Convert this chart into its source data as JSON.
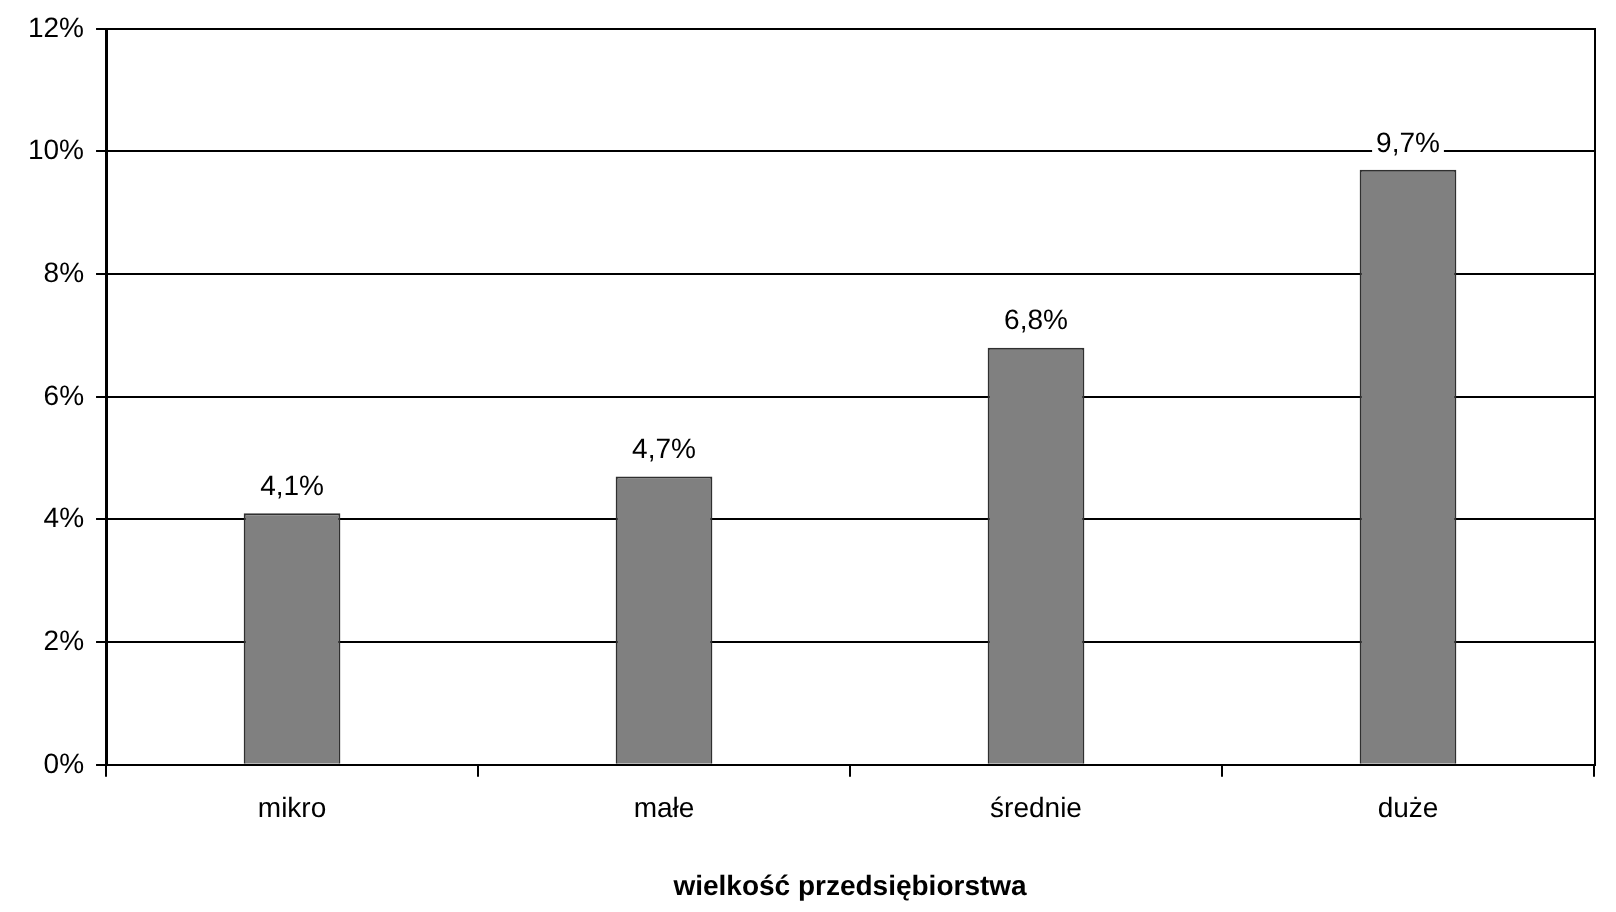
{
  "chart_data": {
    "type": "bar",
    "xlabel": "wielkość przedsiębiorstwa",
    "categories": [
      "mikro",
      "małe",
      "średnie",
      "duże"
    ],
    "values": [
      4.1,
      4.7,
      6.8,
      9.7
    ],
    "color": "#808080",
    "value_labels": [
      "4,1%",
      "4,7%",
      "6,8%",
      "9,7%"
    ],
    "ylim": [
      0,
      12
    ],
    "yticks": [
      {
        "value": 0,
        "label": "0%"
      },
      {
        "value": 2,
        "label": "2%"
      },
      {
        "value": 4,
        "label": "4%"
      },
      {
        "value": 6,
        "label": "6%"
      },
      {
        "value": 8,
        "label": "8%"
      },
      {
        "value": 10,
        "label": "10%"
      },
      {
        "value": 12,
        "label": "12%"
      }
    ],
    "grid": "y",
    "legend": false
  }
}
